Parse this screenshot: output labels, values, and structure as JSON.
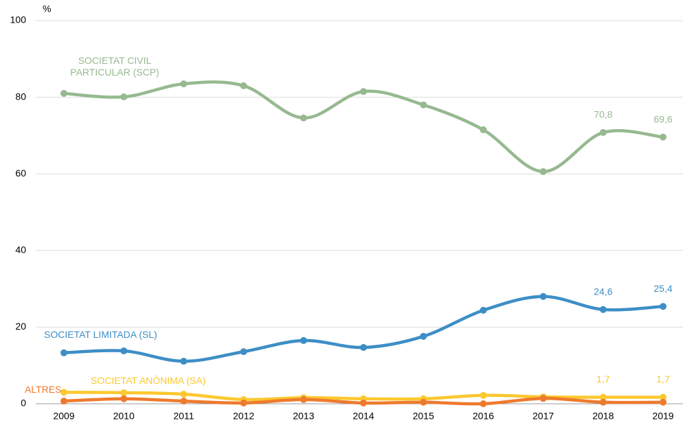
{
  "chart_data": {
    "type": "line",
    "y_label": "%",
    "categories": [
      "2009",
      "2010",
      "2011",
      "2012",
      "2013",
      "2014",
      "2015",
      "2016",
      "2017",
      "2018",
      "2019"
    ],
    "ylim": [
      0,
      100
    ],
    "yticks": [
      0,
      20,
      40,
      60,
      80,
      100
    ],
    "grid": true,
    "series": [
      {
        "name": "SOCIETAT CIVIL PARTICULAR (SCP)",
        "color": "#96b98f",
        "values": [
          81.0,
          80.1,
          83.5,
          83.0,
          74.6,
          81.5,
          78.0,
          71.5,
          60.6,
          70.8,
          69.6
        ],
        "value_labels": [
          null,
          null,
          null,
          null,
          null,
          null,
          null,
          null,
          null,
          "70,8",
          "69,6"
        ]
      },
      {
        "name": "SOCIETAT LIMITADA (SL)",
        "color": "#3d8ec6",
        "values": [
          13.3,
          13.8,
          11.1,
          13.6,
          16.5,
          14.7,
          17.6,
          24.4,
          28.0,
          24.6,
          25.4
        ],
        "value_labels": [
          null,
          null,
          null,
          null,
          null,
          null,
          null,
          null,
          null,
          "24,6",
          "25,4"
        ]
      },
      {
        "name": "SOCIETAT ANÒNIMA (SA)",
        "color": "#fdc82f",
        "values": [
          3.0,
          2.9,
          2.5,
          1.1,
          1.6,
          1.3,
          1.3,
          2.2,
          1.8,
          1.7,
          1.7
        ],
        "value_labels": [
          null,
          null,
          null,
          null,
          null,
          null,
          null,
          null,
          null,
          "1,7",
          "1,7"
        ]
      },
      {
        "name": "ALTRES",
        "color": "#ee7a2d",
        "values": [
          0.7,
          1.3,
          0.7,
          0.2,
          1.1,
          0.2,
          0.4,
          0.0,
          1.4,
          0.4,
          0.4
        ]
      }
    ]
  }
}
